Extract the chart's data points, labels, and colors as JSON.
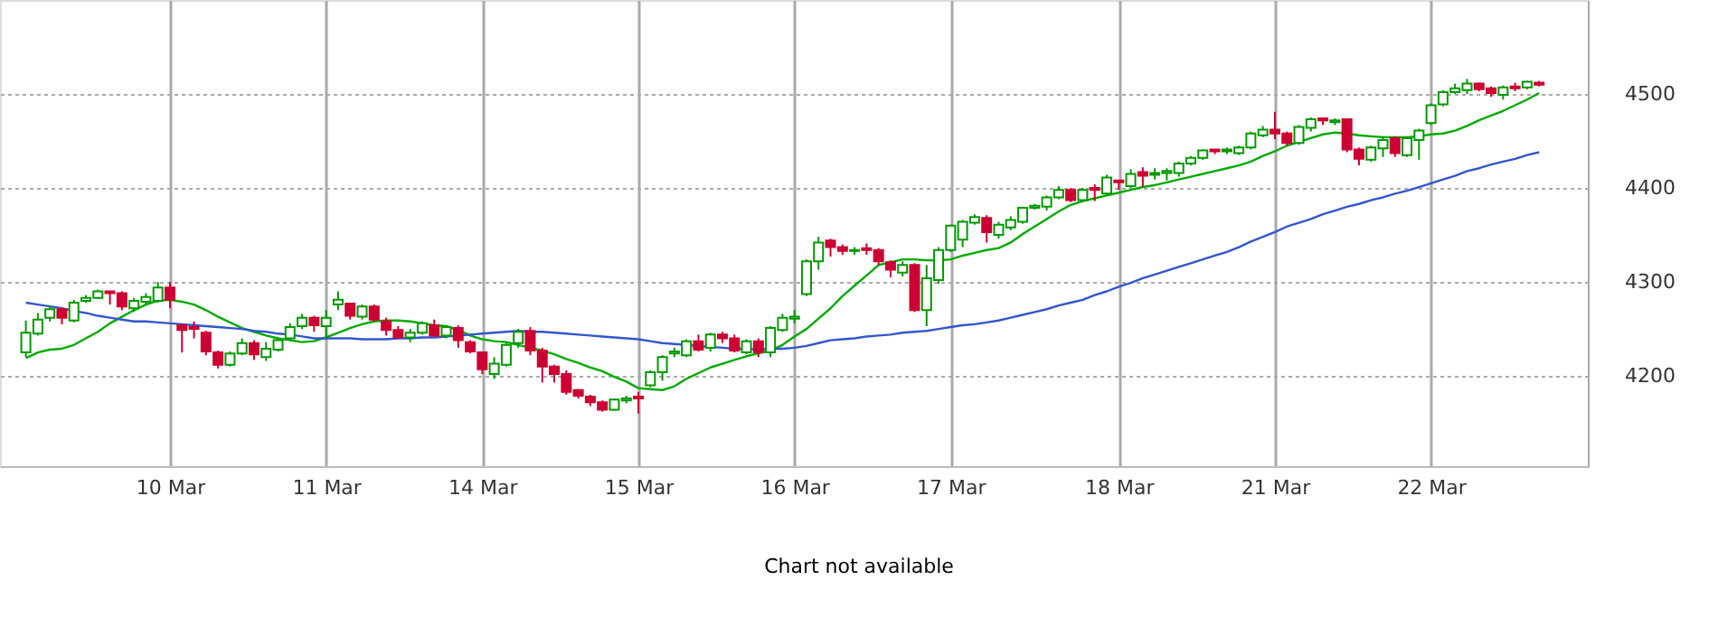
{
  "chart_data": {
    "type": "candlestick",
    "categories": [
      null,
      null,
      null,
      null,
      null,
      null,
      null,
      null,
      null,
      null,
      null,
      null,
      "10 Mar",
      null,
      null,
      null,
      null,
      null,
      null,
      null,
      null,
      null,
      null,
      null,
      null,
      "11 Mar",
      null,
      null,
      null,
      null,
      null,
      null,
      null,
      null,
      null,
      null,
      null,
      null,
      "14 Mar",
      null,
      null,
      null,
      null,
      null,
      null,
      null,
      null,
      null,
      null,
      null,
      null,
      "15 Mar",
      null,
      null,
      null,
      null,
      null,
      null,
      null,
      null,
      null,
      null,
      null,
      null,
      "16 Mar",
      null,
      null,
      null,
      null,
      null,
      null,
      null,
      null,
      null,
      null,
      null,
      null,
      "17 Mar",
      null,
      null,
      null,
      null,
      null,
      null,
      null,
      null,
      null,
      null,
      null,
      null,
      null,
      "18 Mar",
      null,
      null,
      null,
      null,
      null,
      null,
      null,
      null,
      null,
      null,
      null,
      null,
      "21 Mar",
      null,
      null,
      null,
      null,
      null,
      null,
      null,
      null,
      null,
      null,
      null,
      null,
      "22 Mar",
      null,
      null,
      null,
      null,
      null,
      null,
      null,
      null,
      null
    ],
    "ohlc": [
      [
        4225,
        4259,
        4220,
        4246
      ],
      [
        4245,
        4267,
        4243,
        4260
      ],
      [
        4262,
        4275,
        4258,
        4271
      ],
      [
        4271,
        4273,
        4255,
        4262
      ],
      [
        4259,
        4281,
        4257,
        4278
      ],
      [
        4280,
        4286,
        4278,
        4283
      ],
      [
        4283,
        4292,
        4282,
        4290
      ],
      [
        4290,
        4290,
        4276,
        4288
      ],
      [
        4288,
        4290,
        4270,
        4274
      ],
      [
        4272,
        4283,
        4268,
        4280
      ],
      [
        4279,
        4288,
        4276,
        4284
      ],
      [
        4280,
        4300,
        4278,
        4294
      ],
      [
        4294,
        4300,
        4272,
        4281
      ],
      [
        4254,
        4254,
        4225,
        4249
      ],
      [
        4252,
        4258,
        4240,
        4250
      ],
      [
        4246,
        4248,
        4222,
        4226
      ],
      [
        4225,
        4227,
        4208,
        4212
      ],
      [
        4212,
        4226,
        4210,
        4224
      ],
      [
        4224,
        4240,
        4222,
        4235
      ],
      [
        4235,
        4238,
        4217,
        4223
      ],
      [
        4220,
        4236,
        4216,
        4229
      ],
      [
        4228,
        4240,
        4226,
        4238
      ],
      [
        4240,
        4256,
        4238,
        4252
      ],
      [
        4253,
        4266,
        4250,
        4262
      ],
      [
        4262,
        4264,
        4247,
        4254
      ],
      [
        4253,
        4270,
        4240,
        4262
      ],
      [
        4276,
        4290,
        4270,
        4281
      ],
      [
        4277,
        4278,
        4260,
        4264
      ],
      [
        4263,
        4276,
        4260,
        4274
      ],
      [
        4274,
        4276,
        4258,
        4260
      ],
      [
        4258,
        4262,
        4243,
        4249
      ],
      [
        4249,
        4253,
        4240,
        4241
      ],
      [
        4241,
        4250,
        4236,
        4246
      ],
      [
        4246,
        4258,
        4244,
        4256
      ],
      [
        4254,
        4260,
        4242,
        4243
      ],
      [
        4243,
        4254,
        4240,
        4252
      ],
      [
        4251,
        4254,
        4230,
        4238
      ],
      [
        4236,
        4238,
        4224,
        4226
      ],
      [
        4225,
        4226,
        4202,
        4207
      ],
      [
        4202,
        4220,
        4197,
        4213
      ],
      [
        4212,
        4235,
        4210,
        4233
      ],
      [
        4235,
        4250,
        4230,
        4247
      ],
      [
        4248,
        4252,
        4222,
        4227
      ],
      [
        4227,
        4230,
        4193,
        4210
      ],
      [
        4210,
        4212,
        4193,
        4202
      ],
      [
        4202,
        4206,
        4180,
        4183
      ],
      [
        4185,
        4186,
        4176,
        4179
      ],
      [
        4178,
        4180,
        4168,
        4172
      ],
      [
        4172,
        4174,
        4162,
        4164
      ],
      [
        4164,
        4176,
        4163,
        4175
      ],
      [
        4174,
        4179,
        4171,
        4176
      ],
      [
        4178,
        4183,
        4160,
        4176
      ],
      [
        4190,
        4206,
        4188,
        4204
      ],
      [
        4204,
        4222,
        4195,
        4220
      ],
      [
        4224,
        4230,
        4220,
        4226
      ],
      [
        4222,
        4239,
        4220,
        4237
      ],
      [
        4237,
        4244,
        4226,
        4228
      ],
      [
        4230,
        4246,
        4226,
        4244
      ],
      [
        4244,
        4247,
        4235,
        4240
      ],
      [
        4240,
        4244,
        4225,
        4227
      ],
      [
        4225,
        4239,
        4223,
        4237
      ],
      [
        4237,
        4240,
        4220,
        4225
      ],
      [
        4225,
        4253,
        4220,
        4251
      ],
      [
        4249,
        4266,
        4247,
        4262
      ],
      [
        4261,
        4270,
        4256,
        4263
      ],
      [
        4287,
        4324,
        4285,
        4322
      ],
      [
        4322,
        4348,
        4313,
        4342
      ],
      [
        4344,
        4346,
        4327,
        4337
      ],
      [
        4337,
        4340,
        4329,
        4333
      ],
      [
        4333,
        4337,
        4329,
        4334
      ],
      [
        4336,
        4341,
        4329,
        4334
      ],
      [
        4334,
        4336,
        4318,
        4322
      ],
      [
        4321,
        4323,
        4305,
        4313
      ],
      [
        4310,
        4322,
        4306,
        4318
      ],
      [
        4318,
        4320,
        4268,
        4270
      ],
      [
        4270,
        4318,
        4253,
        4304
      ],
      [
        4302,
        4337,
        4298,
        4334
      ],
      [
        4334,
        4361,
        4332,
        4360
      ],
      [
        4345,
        4366,
        4337,
        4364
      ],
      [
        4363,
        4372,
        4361,
        4369
      ],
      [
        4368,
        4371,
        4342,
        4353
      ],
      [
        4350,
        4364,
        4346,
        4361
      ],
      [
        4358,
        4370,
        4355,
        4366
      ],
      [
        4364,
        4380,
        4362,
        4379
      ],
      [
        4379,
        4383,
        4377,
        4381
      ],
      [
        4380,
        4392,
        4376,
        4390
      ],
      [
        4390,
        4402,
        4388,
        4398
      ],
      [
        4398,
        4400,
        4385,
        4387
      ],
      [
        4387,
        4400,
        4385,
        4398
      ],
      [
        4400,
        4404,
        4386,
        4398
      ],
      [
        4394,
        4414,
        4392,
        4411
      ],
      [
        4408,
        4408,
        4398,
        4406
      ],
      [
        4402,
        4420,
        4400,
        4415
      ],
      [
        4417,
        4422,
        4401,
        4413
      ],
      [
        4414,
        4421,
        4409,
        4416
      ],
      [
        4416,
        4421,
        4408,
        4418
      ],
      [
        4416,
        4428,
        4412,
        4426
      ],
      [
        4426,
        4434,
        4424,
        4432
      ],
      [
        4432,
        4441,
        4430,
        4440
      ],
      [
        4441,
        4441,
        4436,
        4439
      ],
      [
        4439,
        4443,
        4436,
        4441
      ],
      [
        4437,
        4445,
        4435,
        4443
      ],
      [
        4443,
        4460,
        4441,
        4458
      ],
      [
        4456,
        4466,
        4454,
        4462
      ],
      [
        4462,
        4481,
        4452,
        4458
      ],
      [
        4458,
        4460,
        4445,
        4448
      ],
      [
        4448,
        4467,
        4446,
        4465
      ],
      [
        4464,
        4475,
        4460,
        4473
      ],
      [
        4474,
        4475,
        4467,
        4472
      ],
      [
        4470,
        4474,
        4467,
        4472
      ],
      [
        4473,
        4474,
        4438,
        4441
      ],
      [
        4441,
        4443,
        4424,
        4431
      ],
      [
        4430,
        4445,
        4428,
        4443
      ],
      [
        4442,
        4455,
        4433,
        4451
      ],
      [
        4453,
        4455,
        4433,
        4437
      ],
      [
        4435,
        4455,
        4433,
        4453
      ],
      [
        4451,
        4463,
        4430,
        4461
      ],
      [
        4469,
        4490,
        4467,
        4488
      ],
      [
        4489,
        4504,
        4487,
        4502
      ],
      [
        4502,
        4511,
        4500,
        4506
      ],
      [
        4504,
        4516,
        4500,
        4511
      ],
      [
        4511,
        4512,
        4503,
        4505
      ],
      [
        4506,
        4508,
        4497,
        4501
      ],
      [
        4499,
        4509,
        4494,
        4507
      ],
      [
        4508,
        4512,
        4503,
        4506
      ],
      [
        4507,
        4514,
        4505,
        4513
      ],
      [
        4512,
        4514,
        4508,
        4510
      ]
    ],
    "colors": [
      "#009900",
      "#009900",
      "#009900",
      "#cc0033",
      "#009900",
      "#009900",
      "#009900",
      "#cc0033",
      "#cc0033",
      "#009900",
      "#009900",
      "#009900",
      "#cc0033",
      "#cc0033",
      "#cc0033",
      "#cc0033",
      "#cc0033",
      "#009900",
      "#009900",
      "#cc0033",
      "#009900",
      "#009900",
      "#009900",
      "#009900",
      "#cc0033",
      "#009900",
      "#009900",
      "#cc0033",
      "#009900",
      "#cc0033",
      "#cc0033",
      "#cc0033",
      "#009900",
      "#009900",
      "#cc0033",
      "#009900",
      "#cc0033",
      "#cc0033",
      "#cc0033",
      "#009900",
      "#009900",
      "#009900",
      "#cc0033",
      "#cc0033",
      "#cc0033",
      "#cc0033",
      "#cc0033",
      "#cc0033",
      "#cc0033",
      "#009900",
      "#009900",
      "#cc0033",
      "#009900",
      "#009900",
      "#009900",
      "#009900",
      "#cc0033",
      "#009900",
      "#cc0033",
      "#cc0033",
      "#009900",
      "#cc0033",
      "#009900",
      "#009900",
      "#009900",
      "#009900",
      "#009900",
      "#cc0033",
      "#cc0033",
      "#009900",
      "#cc0033",
      "#cc0033",
      "#cc0033",
      "#009900",
      "#cc0033",
      "#009900",
      "#009900",
      "#009900",
      "#009900",
      "#009900",
      "#cc0033",
      "#009900",
      "#009900",
      "#009900",
      "#009900",
      "#009900",
      "#009900",
      "#cc0033",
      "#009900",
      "#cc0033",
      "#009900",
      "#cc0033",
      "#009900",
      "#cc0033",
      "#009900",
      "#009900",
      "#009900",
      "#009900",
      "#009900",
      "#cc0033",
      "#009900",
      "#009900",
      "#009900",
      "#009900",
      "#cc0033",
      "#cc0033",
      "#009900",
      "#009900",
      "#cc0033",
      "#009900",
      "#cc0033",
      "#cc0033",
      "#009900",
      "#009900",
      "#cc0033",
      "#009900",
      "#009900",
      "#009900",
      "#009900",
      "#009900",
      "#009900",
      "#cc0033",
      "#cc0033",
      "#009900",
      "#cc0033",
      "#009900",
      "#cc0033"
    ],
    "series": [
      {
        "type": "line",
        "color": "#00aa00",
        "values": [
          4219,
          4225,
          4228,
          4229,
          4233,
          4240,
          4247,
          4256,
          4263,
          4270,
          4276,
          4280,
          4281,
          4279,
          4276,
          4270,
          4263,
          4257,
          4251,
          4247,
          4243,
          4240,
          4238,
          4236,
          4237,
          4241,
          4246,
          4251,
          4255,
          4258,
          4259,
          4259,
          4258,
          4256,
          4254,
          4253,
          4249,
          4243,
          4239,
          4237,
          4236,
          4233,
          4230,
          4227,
          4223,
          4218,
          4214,
          4209,
          4205,
          4199,
          4194,
          4187,
          4186,
          4185,
          4189,
          4197,
          4203,
          4209,
          4213,
          4217,
          4221,
          4224,
          4227,
          4233,
          4242,
          4250,
          4261,
          4272,
          4285,
          4296,
          4307,
          4318,
          4321,
          4324,
          4324,
          4323,
          4323,
          4324,
          4328,
          4331,
          4334,
          4336,
          4342,
          4351,
          4359,
          4367,
          4375,
          4382,
          4386,
          4389,
          4392,
          4395,
          4398,
          4401,
          4403,
          4406,
          4409,
          4412,
          4415,
          4418,
          4421,
          4424,
          4428,
          4434,
          4439,
          4445,
          4449,
          4453,
          4457,
          4459,
          4458,
          4456,
          4455,
          4454,
          4454,
          4454,
          4455,
          4457,
          4458,
          4461,
          4466,
          4472,
          4477,
          4482,
          4488,
          4494,
          4501
        ]
      },
      {
        "type": "line",
        "color": "#3355cc",
        "values": [
          4278,
          4276,
          4274,
          4272,
          4269,
          4267,
          4264,
          4262,
          4260,
          4258,
          4258,
          4257,
          4256,
          4255,
          4254,
          4253,
          4252,
          4251,
          4250,
          4248,
          4247,
          4245,
          4244,
          4242,
          4240,
          4240,
          4240,
          4240,
          4239,
          4239,
          4239,
          4240,
          4240,
          4241,
          4241,
          4242,
          4243,
          4244,
          4245,
          4246,
          4247,
          4248,
          4247,
          4247,
          4246,
          4245,
          4244,
          4243,
          4242,
          4241,
          4240,
          4239,
          4237,
          4235,
          4234,
          4233,
          4232,
          4231,
          4230,
          4229,
          4229,
          4228,
          4229,
          4229,
          4230,
          4232,
          4235,
          4238,
          4239,
          4240,
          4242,
          4243,
          4244,
          4246,
          4247,
          4248,
          4250,
          4252,
          4254,
          4255,
          4257,
          4259,
          4262,
          4265,
          4268,
          4271,
          4275,
          4278,
          4281,
          4286,
          4290,
          4295,
          4299,
          4304,
          4308,
          4312,
          4316,
          4320,
          4324,
          4328,
          4332,
          4337,
          4343,
          4348,
          4353,
          4359,
          4363,
          4367,
          4372,
          4376,
          4380,
          4383,
          4387,
          4390,
          4394,
          4397,
          4401,
          4405,
          4409,
          4413,
          4418,
          4421,
          4425,
          4428,
          4431,
          4435,
          4438
        ]
      }
    ],
    "ylim": [
      4104,
      4600
    ],
    "yticks": [
      4200,
      4300,
      4400,
      4500
    ],
    "grid": true,
    "marker": "none",
    "annotations": [
      "Chart not available"
    ]
  }
}
